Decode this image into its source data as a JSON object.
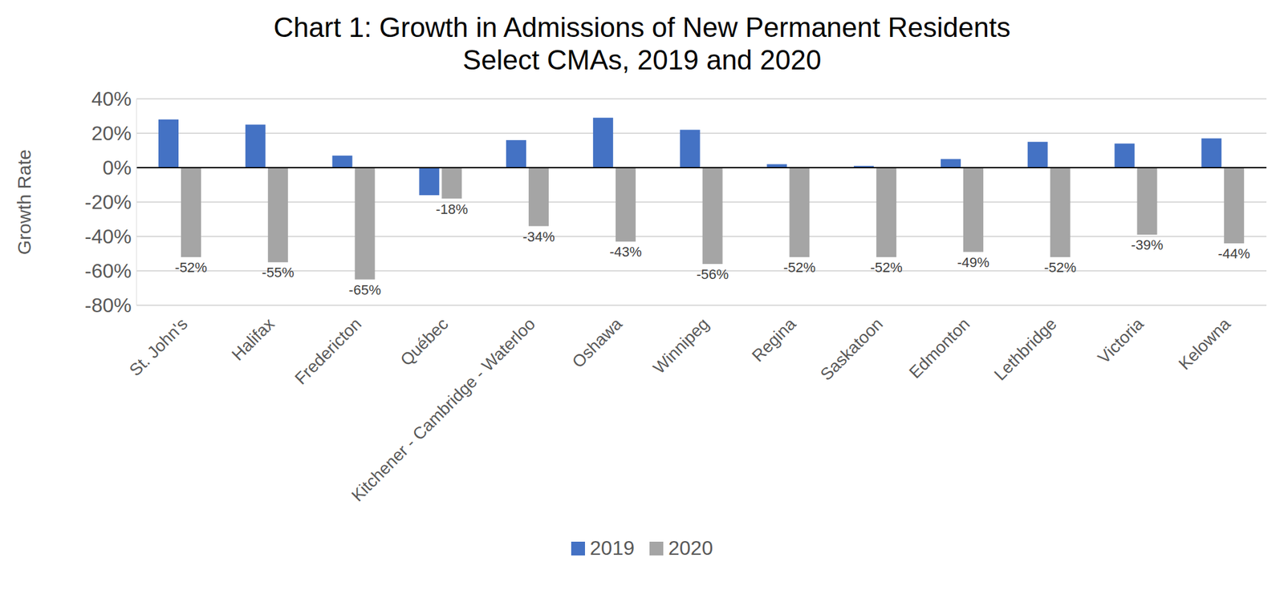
{
  "chart_data": {
    "type": "bar",
    "title": "Chart 1: Growth in Admissions of New Permanent Residents",
    "subtitle": "Select CMAs, 2019 and 2020",
    "y_label": "Growth Rate",
    "categories": [
      "St. John's",
      "Halifax",
      "Fredericton",
      "Québec",
      "Kitchener - Cambridge - Waterloo",
      "Oshawa",
      "Winnipeg",
      "Regina",
      "Saskatoon",
      "Edmonton",
      "Lethbridge",
      "Victoria",
      "Kelowna"
    ],
    "series": [
      {
        "name": "2019",
        "color": "#4472c4",
        "values": [
          28,
          25,
          7,
          -16,
          16,
          29,
          22,
          2,
          1,
          5,
          15,
          14,
          17
        ]
      },
      {
        "name": "2020",
        "color": "#a5a5a5",
        "values": [
          -52,
          -55,
          -65,
          -18,
          -34,
          -43,
          -56,
          -52,
          -52,
          -49,
          -52,
          -39,
          -44
        ],
        "data_labels": true,
        "value_labels": [
          "-52%",
          "-55%",
          "-65%",
          "-18%",
          "-34%",
          "-43%",
          "-56%",
          "-52%",
          "-52%",
          "-49%",
          "-52%",
          "-39%",
          "-44%"
        ]
      }
    ],
    "ylim": [
      -80,
      40
    ],
    "yticks": [
      {
        "value": 40,
        "label": "40%"
      },
      {
        "value": 20,
        "label": "20%"
      },
      {
        "value": 0,
        "label": "0%"
      },
      {
        "value": -20,
        "label": "-20%"
      },
      {
        "value": -40,
        "label": "-40%"
      },
      {
        "value": -60,
        "label": "-60%"
      },
      {
        "value": -80,
        "label": "-80%"
      }
    ],
    "grid": true,
    "legend": "bottom"
  }
}
